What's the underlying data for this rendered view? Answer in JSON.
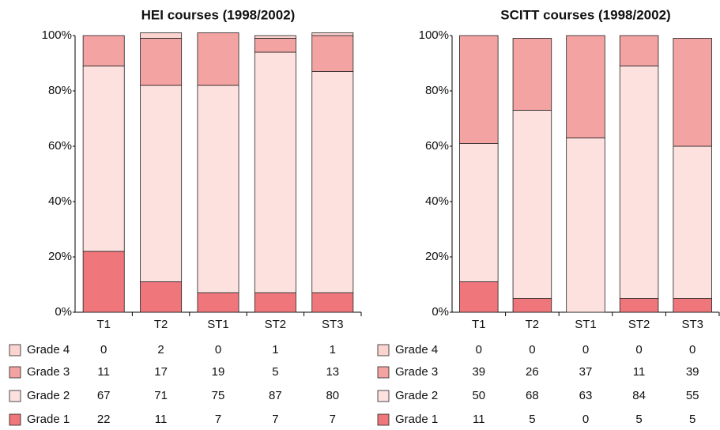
{
  "chart_data": [
    {
      "type": "stacked_bar",
      "title": "HEI courses (1998/2002)",
      "categories": [
        "T1",
        "T2",
        "ST1",
        "ST2",
        "ST3"
      ],
      "series": [
        {
          "name": "Grade 4",
          "color": "#fbd3cf",
          "values": [
            0,
            2,
            0,
            1,
            1
          ]
        },
        {
          "name": "Grade 3",
          "color": "#f4a3a3",
          "values": [
            11,
            17,
            19,
            5,
            13
          ]
        },
        {
          "name": "Grade 2",
          "color": "#fde1de",
          "values": [
            67,
            71,
            75,
            87,
            80
          ]
        },
        {
          "name": "Grade 1",
          "color": "#ef767a",
          "values": [
            22,
            11,
            7,
            7,
            7
          ]
        }
      ],
      "ylim": [
        0,
        100
      ],
      "yticks": [
        {
          "value": 0,
          "label": "0%"
        },
        {
          "value": 20,
          "label": "20%"
        },
        {
          "value": 40,
          "label": "40%"
        },
        {
          "value": 60,
          "label": "60%"
        },
        {
          "value": 80,
          "label": "80%"
        },
        {
          "value": 100,
          "label": "100%"
        }
      ]
    },
    {
      "type": "stacked_bar",
      "title": "SCITT courses (1998/2002)",
      "categories": [
        "T1",
        "T2",
        "ST1",
        "ST2",
        "ST3"
      ],
      "series": [
        {
          "name": "Grade 4",
          "color": "#fbd3cf",
          "values": [
            0,
            0,
            0,
            0,
            0
          ]
        },
        {
          "name": "Grade 3",
          "color": "#f4a3a3",
          "values": [
            39,
            26,
            37,
            11,
            39
          ]
        },
        {
          "name": "Grade 2",
          "color": "#fde1de",
          "values": [
            50,
            68,
            63,
            84,
            55
          ]
        },
        {
          "name": "Grade 1",
          "color": "#ef767a",
          "values": [
            11,
            5,
            0,
            5,
            5
          ]
        }
      ],
      "ylim": [
        0,
        100
      ],
      "yticks": [
        {
          "value": 0,
          "label": "0%"
        },
        {
          "value": 20,
          "label": "20%"
        },
        {
          "value": 40,
          "label": "40%"
        },
        {
          "value": 60,
          "label": "60%"
        },
        {
          "value": 80,
          "label": "80%"
        },
        {
          "value": 100,
          "label": "100%"
        }
      ]
    }
  ]
}
